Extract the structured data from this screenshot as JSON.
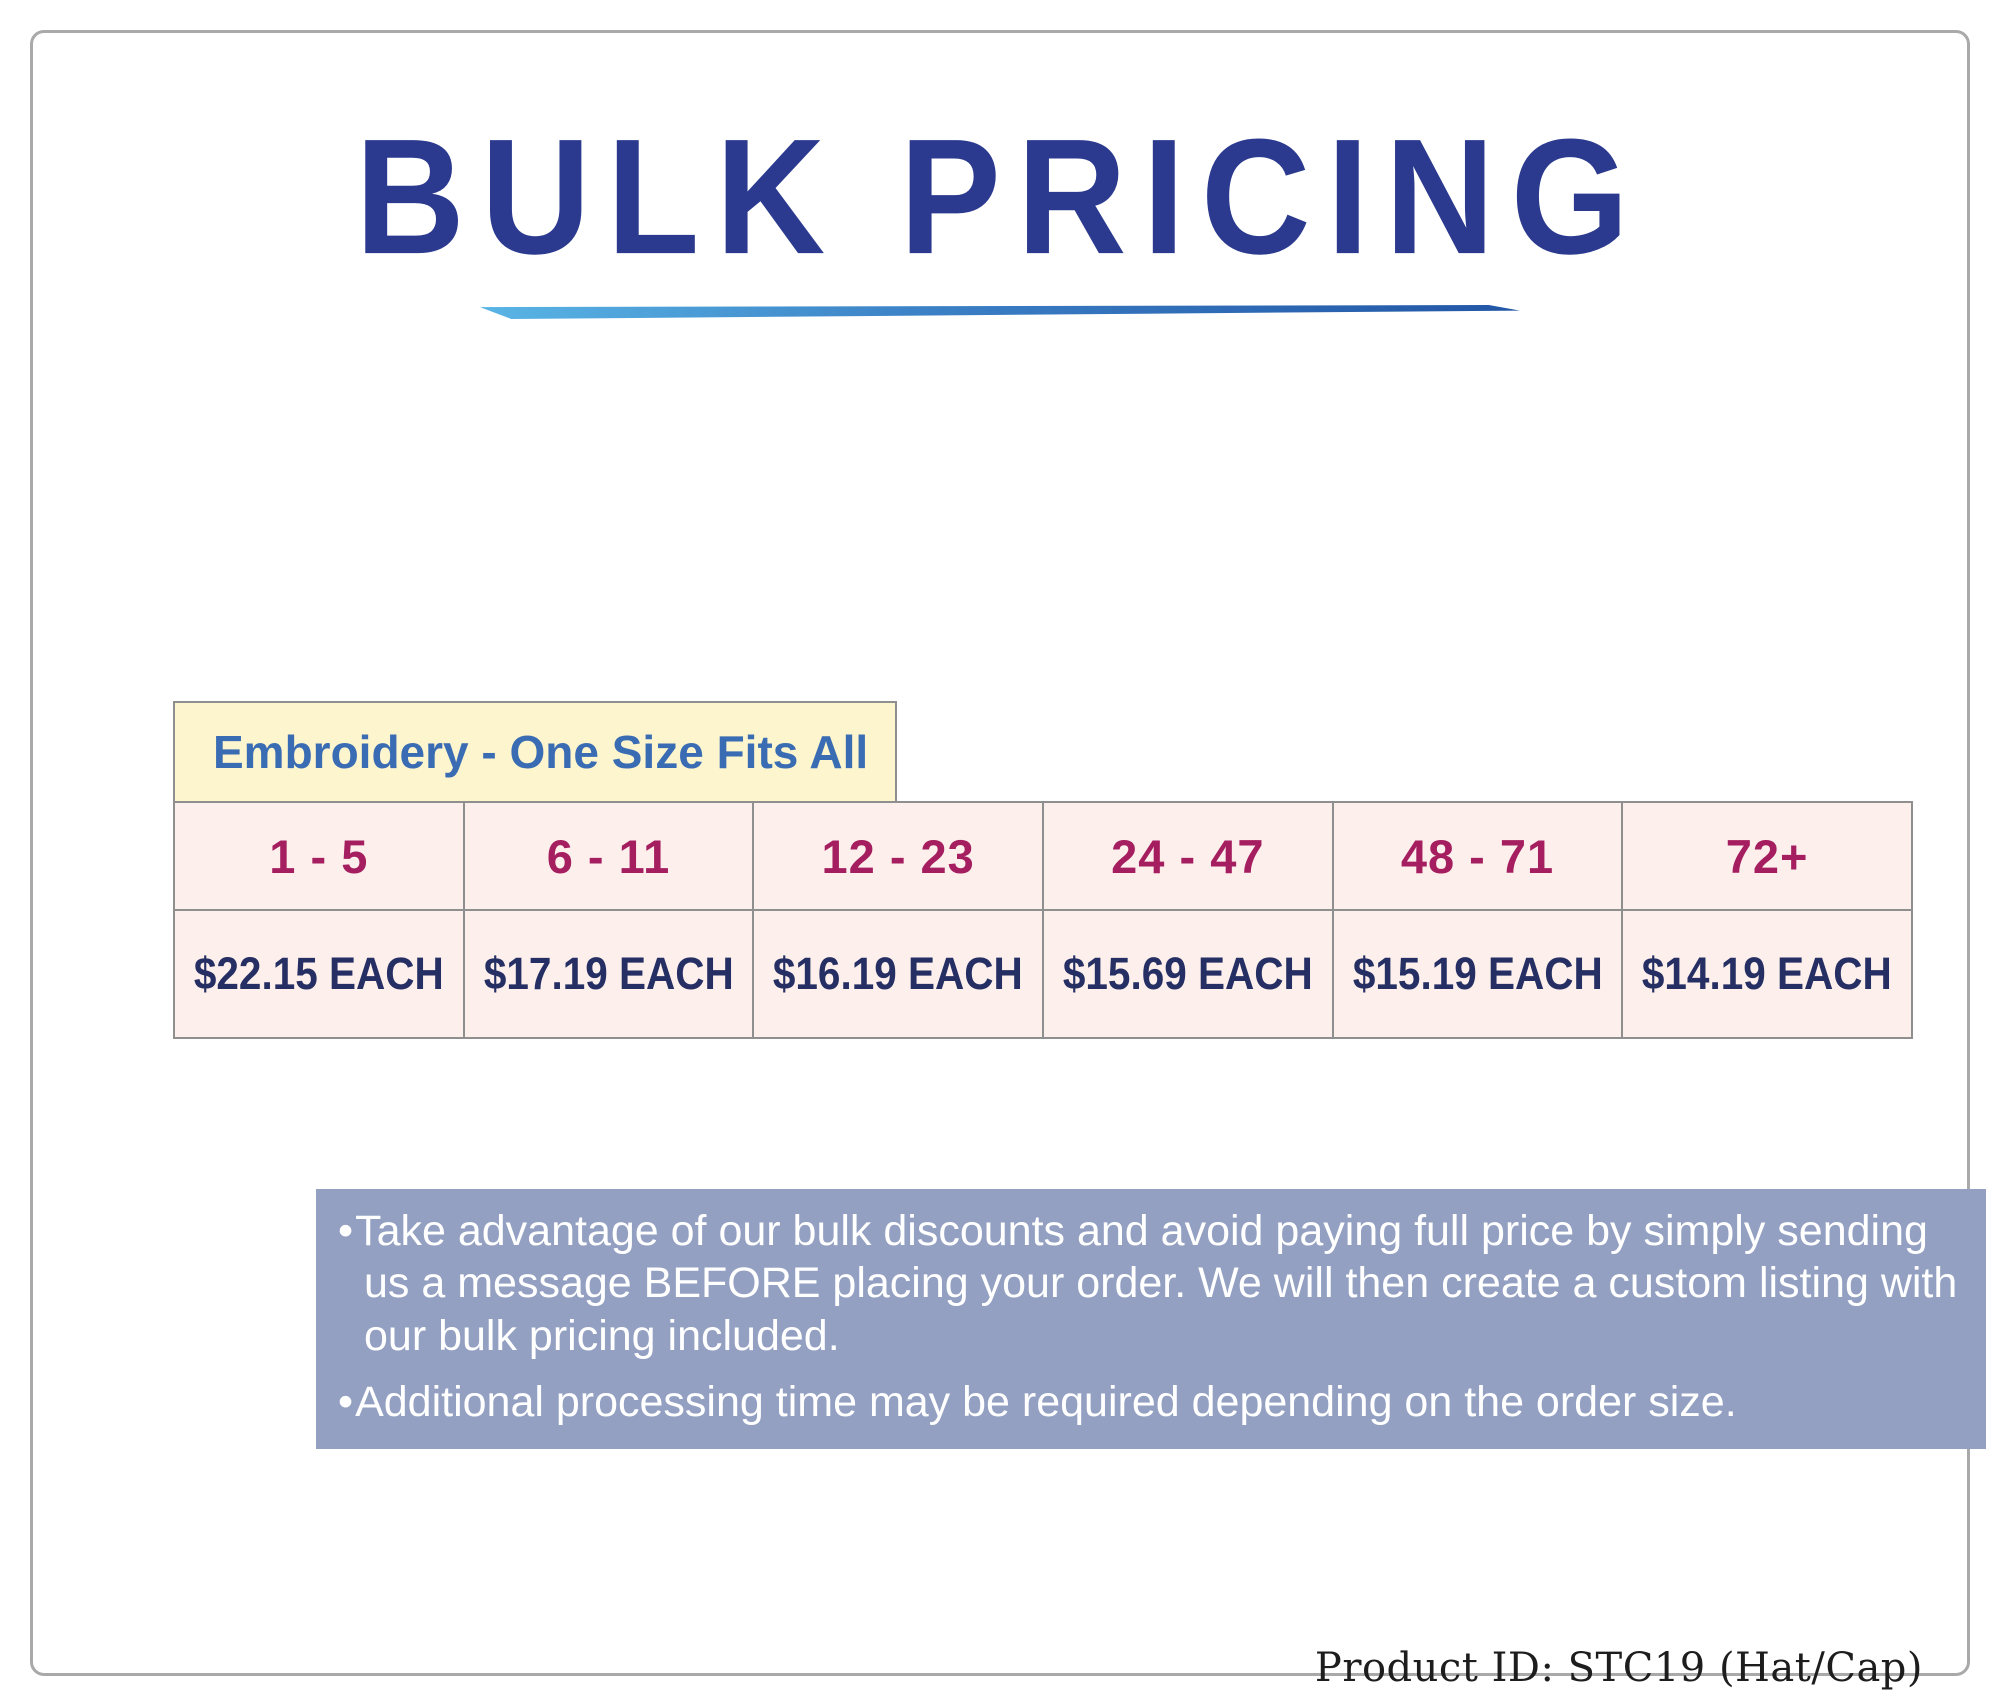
{
  "header": {
    "title": "BULK PRICING"
  },
  "table": {
    "header": "Embroidery - One Size Fits All",
    "ranges": [
      "1 - 5",
      "6 - 11",
      "12 - 23",
      "24 - 47",
      "48 - 71",
      "72+"
    ],
    "prices": [
      "$22.15 EACH",
      "$17.19 EACH",
      "$16.19 EACH",
      "$15.69 EACH",
      "$15.19 EACH",
      "$14.19 EACH"
    ]
  },
  "notes": {
    "bullet": "•",
    "items": [
      "Take advantage of our bulk discounts and avoid paying full price by simply sending us a message BEFORE placing your order. We will then create a custom listing with our bulk pricing included.",
      "Additional processing time may be required depending on the order size."
    ]
  },
  "footer": {
    "product_id": "Product ID: STC19 (Hat/Cap)"
  },
  "colors": {
    "title_blue": "#2b3a8f",
    "underline_gradient_start": "#59b5e5",
    "underline_gradient_end": "#2256a6",
    "label_background": "#fdf5cd",
    "label_text": "#3a6cb4",
    "range_text": "#a51e5f",
    "price_text": "#252f63",
    "cell_background": "#fcefec",
    "grid_border": "#8f8f8f",
    "notes_background": "#93a0c2",
    "notes_text": "#ffffff"
  }
}
